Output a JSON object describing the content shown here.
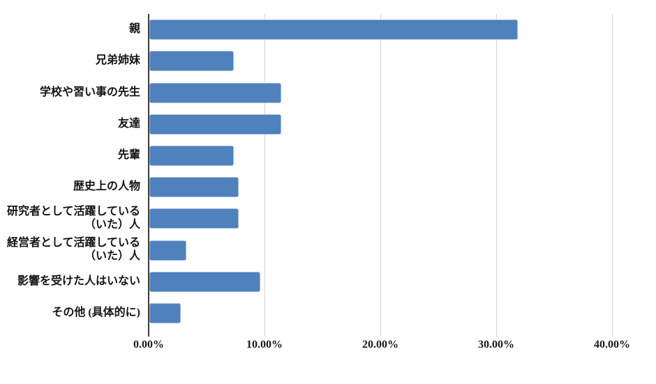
{
  "chart_data": {
    "type": "bar",
    "orientation": "horizontal",
    "title": "",
    "categories": [
      "親",
      "兄弟姉妹",
      "学校や習い事の先生",
      "友達",
      "先輩",
      "歴史上の人物",
      "研究者として活躍している（いた）人",
      "経営者として活躍している（いた）人",
      "影響を受けた人はいない",
      "その他 (具体的に)"
    ],
    "category_display_lines": [
      [
        "親"
      ],
      [
        "兄弟姉妹"
      ],
      [
        "学校や習い事の先生"
      ],
      [
        "友達"
      ],
      [
        "先輩"
      ],
      [
        "歴史上の人物"
      ],
      [
        "研究者として活躍している",
        "（いた）人"
      ],
      [
        "経営者として活躍している",
        "（いた）人"
      ],
      [
        "影響を受けた人はいない"
      ],
      [
        "その他 (具体的に)"
      ]
    ],
    "values": [
      31.82,
      7.27,
      11.36,
      11.36,
      7.27,
      7.73,
      7.73,
      3.18,
      9.55,
      2.73
    ],
    "value_unit": "%",
    "xlabel": "",
    "ylabel": "",
    "xlim": [
      0,
      40
    ],
    "x_tick_labels": [
      "0.00%",
      "10.00%",
      "20.00%",
      "30.00%",
      "40.00%"
    ],
    "x_tick_values": [
      0,
      10,
      20,
      30,
      40
    ],
    "grid": "vertical",
    "legend": "none",
    "colors": {
      "bar_fill": "#4f81bd",
      "bar_border": "#9db8d9",
      "gridline": "#d4d4d4",
      "axis_line": "#3c3c3c",
      "text": "#141414",
      "background": "#ffffff"
    }
  }
}
